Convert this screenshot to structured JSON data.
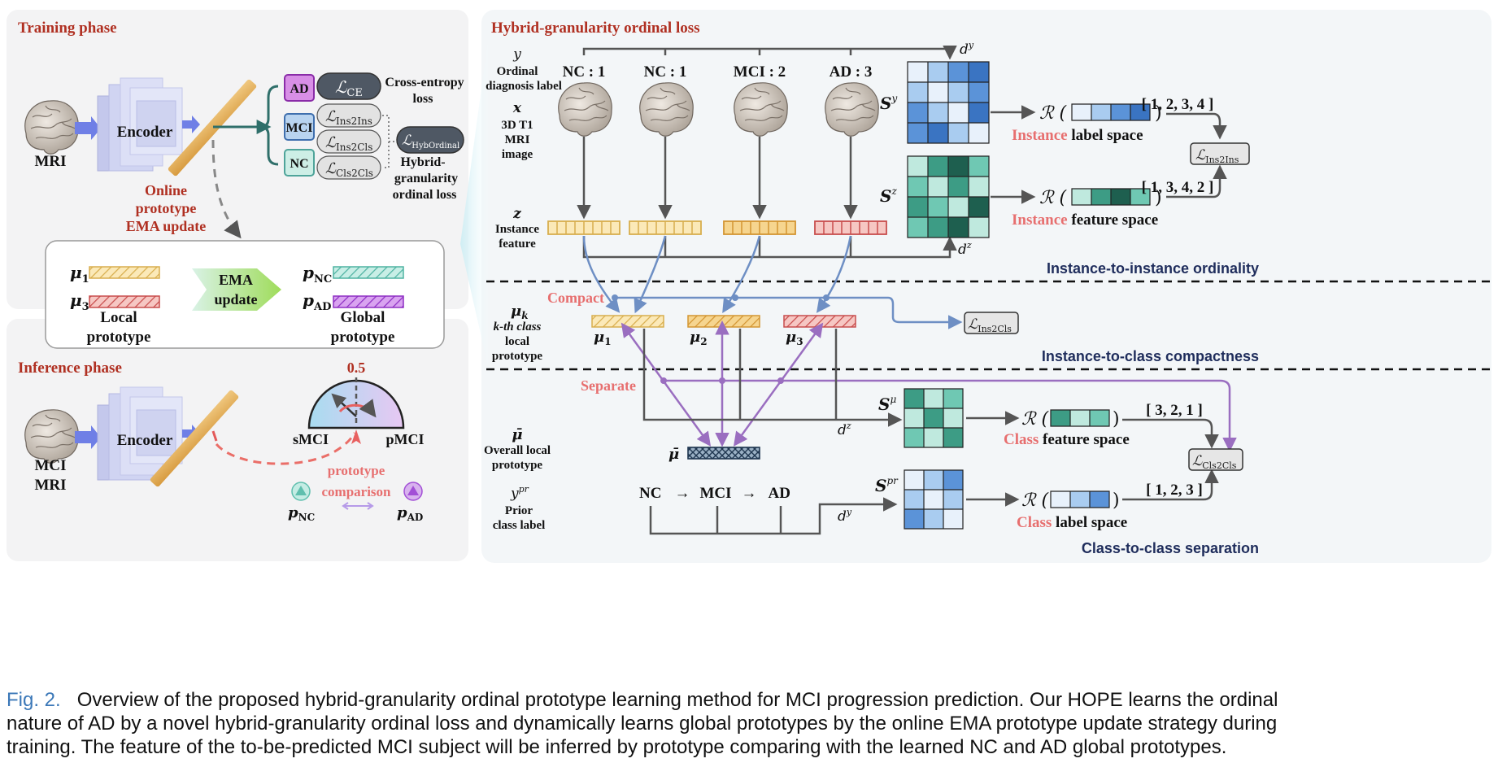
{
  "sections": {
    "training": "Training phase",
    "inference": "Inference phase",
    "hybrid": "Hybrid-granularity ordinal loss"
  },
  "training": {
    "mri": "MRI",
    "encoder": "Encoder",
    "classes": [
      "AD",
      "MCI",
      "NC"
    ],
    "loss_ce": "CE",
    "loss_ins2ins": "Ins2Ins",
    "loss_ins2cls": "Ins2Cls",
    "loss_cls2cls": "Cls2Cls",
    "loss_hyb": "HybOrdinal",
    "ce_label": [
      "Cross-entropy",
      "loss"
    ],
    "hyb_label": [
      "Hybrid-",
      "granularity",
      "ordinal loss"
    ],
    "ema_label": [
      "Online",
      "prototype",
      "EMA update"
    ],
    "ema_box": [
      "EMA",
      "update"
    ],
    "mu1_sub": "1",
    "mu3_sub": "3",
    "p_nc_sub": "NC",
    "p_ad_sub": "AD",
    "local": [
      "Local",
      "prototype"
    ],
    "global": [
      "Global",
      "prototype"
    ]
  },
  "inference": {
    "mri": [
      "MCI",
      "MRI"
    ],
    "encoder": "Encoder",
    "threshold": "0.5",
    "smci": "sMCI",
    "pmci": "pMCI",
    "comparison": [
      "prototype",
      "comparison"
    ],
    "p_nc_sub": "NC",
    "p_ad_sub": "AD"
  },
  "hybrid": {
    "row_labels": {
      "y": "y",
      "y_desc": [
        "Ordinal",
        "diagnosis label"
      ],
      "x": "x",
      "x_desc": [
        "3D T1",
        "MRI",
        "image"
      ],
      "z": "z",
      "z_desc": [
        "Instance",
        "feature"
      ],
      "mu_k": "k",
      "mu_k_desc": [
        "k-th class",
        "local",
        "prototype"
      ],
      "mubar_desc": [
        "Overall local",
        "prototype"
      ],
      "ypr_sup": "pr",
      "ypr_desc": [
        "Prior",
        "class label"
      ]
    },
    "ordinal_labels": [
      "NC : 1",
      "NC : 1",
      "MCI : 2",
      "AD : 3"
    ],
    "prototype_subs": [
      "1",
      "2",
      "3"
    ],
    "mubar": "μ̄",
    "prior_seq": [
      "NC",
      "→",
      "MCI",
      "→",
      "AD"
    ],
    "compact": "Compact",
    "separate": "Separate",
    "dy": "d",
    "dz": "d",
    "S_sups": [
      "y",
      "z",
      "μ",
      "pr"
    ],
    "R": "ℛ",
    "rank_instance_label": "[ 1, 2, 3, 4 ]",
    "rank_instance_feature": "[ 1, 3, 4, 2 ]",
    "rank_class_feature": "[ 3, 2, 1 ]",
    "rank_class_label": "[ 1, 2, 3 ]",
    "space_instance_label": [
      "Instance",
      " label space"
    ],
    "space_instance_feature": [
      "Instance",
      " feature space"
    ],
    "space_class_feature": [
      "Class",
      " feature space"
    ],
    "space_class_label": [
      "Class",
      " label space"
    ],
    "ordinality_labels": {
      "inst2inst": [
        "Ins",
        "tance-to-ins",
        "tance ordinality"
      ],
      "inst2cls": [
        "Ins",
        "tance-to-class compactness"
      ],
      "cls2cls": [
        "Cla",
        "ss-to-class separation"
      ]
    }
  },
  "colors": {
    "nc_yellow": "#e8c36a",
    "mci_orange": "#e3a640",
    "ad_red": "#d76a6a",
    "teal": "#5fbfae",
    "purple": "#a24fd6",
    "blue_arrow": "#6e8fc4",
    "purple_arrow": "#9a6ec0",
    "title_red": "#b03022",
    "navy": "#1f2d5c"
  },
  "caption": {
    "label": "Fig. 2.",
    "lines": [
      "Overview of the proposed hybrid-granularity ordinal prototype learning method for MCI progression prediction. Our HOPE learns the ordinal",
      "nature of AD by a novel hybrid-granularity ordinal loss and dynamically learns global prototypes by the online EMA prototype update strategy during",
      "training. The feature of the to-be-predicted MCI subject will be inferred by prototype comparing with the learned NC and AD global prototypes."
    ]
  }
}
